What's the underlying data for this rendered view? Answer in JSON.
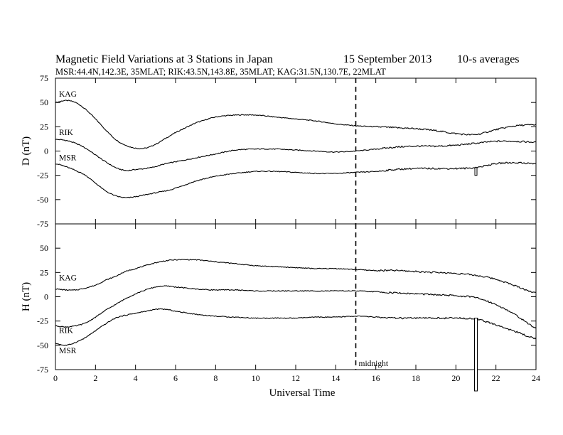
{
  "header": {
    "title": "Magnetic Field Variations at 3 Stations in Japan",
    "date": "15 September 2013",
    "averaging": "10-s averages",
    "stations_line": "MSR:44.4N,142.3E, 35MLAT;  RIK:43.5N,143.8E, 35MLAT;  KAG:31.5N,130.7E, 22MLAT"
  },
  "chart_data": [
    {
      "type": "line",
      "panel": "D",
      "ylabel": "D (nT)",
      "xlabel": "",
      "xlim": [
        0,
        24
      ],
      "ylim": [
        -75,
        75
      ],
      "yticks": [
        75,
        50,
        25,
        0,
        -25,
        -50,
        -75
      ],
      "xticks": [
        0,
        2,
        4,
        6,
        8,
        10,
        12,
        14,
        16,
        18,
        20,
        22,
        24
      ],
      "series": [
        {
          "name": "KAG",
          "x": [
            0,
            0.5,
            1,
            1.5,
            2,
            2.5,
            3,
            3.5,
            4,
            4.5,
            5,
            5.5,
            6,
            6.5,
            7,
            8,
            9,
            10,
            11,
            12,
            13,
            14,
            15,
            16,
            17,
            18,
            19,
            20,
            21,
            22,
            23,
            24
          ],
          "values": [
            50,
            52,
            50,
            43,
            33,
            22,
            12,
            6,
            3,
            3,
            7,
            13,
            19,
            24,
            29,
            35,
            37,
            37,
            35,
            33,
            31,
            28,
            26,
            25,
            24,
            23,
            21,
            18,
            17,
            22,
            26,
            27
          ]
        },
        {
          "name": "RIK",
          "x": [
            0,
            0.5,
            1,
            1.5,
            2,
            2.5,
            3,
            3.5,
            4,
            4.5,
            5,
            5.5,
            6,
            7,
            8,
            9,
            10,
            11,
            12,
            13,
            14,
            15,
            16,
            17,
            18,
            19,
            20,
            21,
            22,
            23,
            24
          ],
          "values": [
            12,
            11,
            8,
            3,
            -4,
            -11,
            -17,
            -20,
            -19,
            -18,
            -16,
            -13,
            -11,
            -7,
            -3,
            1,
            2,
            2,
            1,
            0,
            -1,
            0,
            2,
            4,
            5,
            5,
            6,
            8,
            10,
            10,
            9
          ]
        },
        {
          "name": "MSR",
          "x": [
            0,
            0.5,
            1,
            1.5,
            2,
            2.5,
            3,
            3.5,
            4,
            4.5,
            5,
            5.5,
            6,
            7,
            8,
            9,
            10,
            11,
            12,
            13,
            14,
            15,
            16,
            17,
            18,
            19,
            20,
            21,
            22,
            23,
            24
          ],
          "values": [
            -13,
            -16,
            -20,
            -25,
            -33,
            -41,
            -46,
            -48,
            -47,
            -45,
            -43,
            -41,
            -38,
            -31,
            -26,
            -23,
            -21,
            -21,
            -22,
            -23,
            -23,
            -22,
            -21,
            -19,
            -18,
            -18,
            -18,
            -17,
            -13,
            -12,
            -13
          ]
        }
      ]
    },
    {
      "type": "line",
      "panel": "H",
      "ylabel": "H (nT)",
      "xlabel": "Universal Time",
      "xlim": [
        0,
        24
      ],
      "ylim": [
        -75,
        75
      ],
      "yticks": [
        75,
        50,
        25,
        0,
        -25,
        -50,
        -75
      ],
      "xticks": [
        0,
        2,
        4,
        6,
        8,
        10,
        12,
        14,
        16,
        18,
        20,
        22,
        24
      ],
      "annotations": [
        {
          "text": "midnight",
          "x": 15
        }
      ],
      "series": [
        {
          "name": "KAG",
          "x": [
            0,
            0.5,
            1,
            1.5,
            2,
            2.5,
            3,
            3.5,
            4,
            4.5,
            5,
            5.5,
            6,
            7,
            8,
            9,
            10,
            11,
            12,
            13,
            14,
            15,
            16,
            17,
            18,
            19,
            20,
            21,
            22,
            23,
            24
          ],
          "values": [
            8,
            7,
            7,
            9,
            12,
            17,
            21,
            26,
            29,
            32,
            35,
            37,
            38,
            38,
            36,
            34,
            32,
            31,
            30,
            29,
            29,
            28,
            27,
            27,
            26,
            25,
            24,
            22,
            18,
            11,
            4
          ]
        },
        {
          "name": "RIK",
          "x": [
            0,
            0.5,
            1,
            1.5,
            2,
            2.5,
            3,
            3.5,
            4,
            4.5,
            5,
            5.5,
            6,
            7,
            8,
            9,
            10,
            11,
            12,
            13,
            14,
            15,
            16,
            17,
            18,
            19,
            20,
            21,
            22,
            23,
            24
          ],
          "values": [
            -30,
            -31,
            -30,
            -27,
            -21,
            -14,
            -8,
            -2,
            3,
            7,
            10,
            11,
            10,
            8,
            7,
            7,
            6,
            6,
            6,
            6,
            6,
            6,
            5,
            4,
            3,
            2,
            1,
            -1,
            -8,
            -19,
            -32
          ]
        },
        {
          "name": "MSR",
          "x": [
            0,
            0.5,
            1,
            1.5,
            2,
            2.5,
            3,
            3.5,
            4,
            4.5,
            5,
            5.5,
            6,
            7,
            8,
            9,
            10,
            11,
            12,
            13,
            14,
            15,
            16,
            17,
            18,
            19,
            20,
            21,
            22,
            23,
            24
          ],
          "values": [
            -48,
            -50,
            -47,
            -42,
            -35,
            -28,
            -22,
            -19,
            -17,
            -15,
            -13,
            -13,
            -15,
            -18,
            -20,
            -21,
            -22,
            -22,
            -22,
            -21,
            -21,
            -20,
            -21,
            -22,
            -22,
            -22,
            -22,
            -23,
            -29,
            -36,
            -43
          ]
        }
      ]
    }
  ]
}
